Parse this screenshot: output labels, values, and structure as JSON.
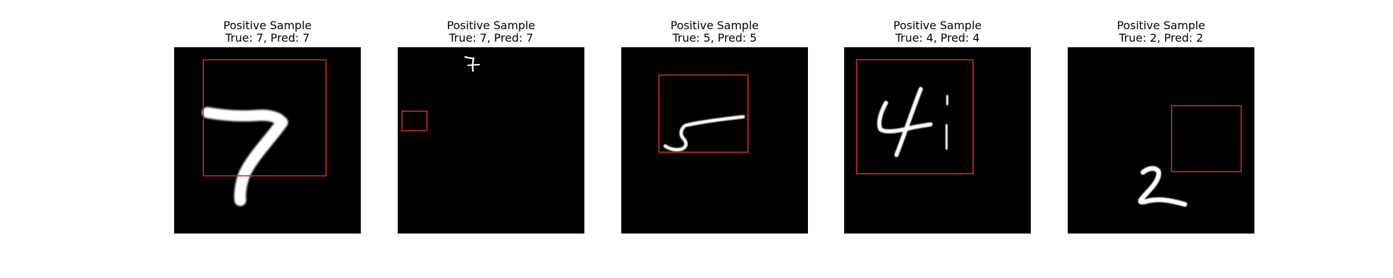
{
  "figure": {
    "panels": [
      {
        "title_line1": "Positive Sample",
        "title_line2": "True: 7, Pred: 7",
        "digit": "7",
        "box_color": "#d62728"
      },
      {
        "title_line1": "Positive Sample",
        "title_line2": "True: 7, Pred: 7",
        "digit": "7",
        "box_color": "#d62728"
      },
      {
        "title_line1": "Positive Sample",
        "title_line2": "True: 5, Pred: 5",
        "digit": "5",
        "box_color": "#d62728"
      },
      {
        "title_line1": "Positive Sample",
        "title_line2": "True: 4, Pred: 4",
        "digit": "4",
        "box_color": "#d62728"
      },
      {
        "title_line1": "Positive Sample",
        "title_line2": "True: 2, Pred: 2",
        "digit": "2",
        "box_color": "#d62728"
      }
    ]
  }
}
